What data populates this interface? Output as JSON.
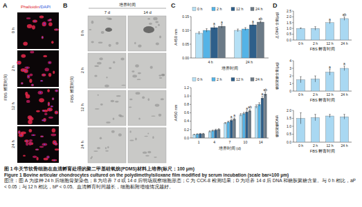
{
  "panels": [
    {
      "label": "A",
      "header": [
        "Phalloidin",
        "/DAPI"
      ],
      "side_label": "FBS 孵育时间",
      "row_labels": [
        "0 h",
        "2 h",
        "12 h",
        "24 h"
      ]
    },
    {
      "label": "B",
      "header": "培养时间",
      "column_labels": [
        "7 d",
        "14 d"
      ],
      "side_label": "FBS 孵育时间",
      "row_labels": [
        "0 h",
        "2 h",
        "12 h",
        "24 h"
      ]
    },
    {
      "label": "C"
    },
    {
      "label": "D"
    }
  ],
  "chart_data": [
    {
      "type": "bar",
      "ylabel": "A450 nm",
      "xlabel": "培养时间",
      "categories": [
        "4 h",
        "24 h"
      ],
      "series": [
        {
          "name": "0 h",
          "color": "#b5e0f5",
          "values": [
            0.09,
            0.1
          ],
          "errors": [
            0.005,
            0.005
          ],
          "sig_labels": [
            null,
            null
          ]
        },
        {
          "name": "2 h",
          "color": "#54b3e6",
          "values": [
            0.1,
            0.105
          ],
          "errors": [
            0.006,
            0.005
          ],
          "sig_labels": [
            null,
            null
          ]
        },
        {
          "name": "12 h",
          "color": "#2e5f8a",
          "values": [
            0.11,
            0.12
          ],
          "errors": [
            0.006,
            0.005
          ],
          "sig_labels": [
            "a",
            "a"
          ]
        },
        {
          "name": "24 h",
          "color": "#6b7a87",
          "values": [
            0.115,
            0.13
          ],
          "errors": [
            0.007,
            0.004
          ],
          "sig_labels": [
            "a",
            "ab"
          ]
        }
      ],
      "ylim": [
        0,
        0.15
      ],
      "yticks": [
        {
          "value": 0,
          "label": "0.00"
        },
        {
          "value": 0.05,
          "label": "0.05"
        },
        {
          "value": 0.1,
          "label": "0.10"
        },
        {
          "value": 0.15,
          "label": "0.15"
        }
      ],
      "legend": "top"
    },
    {
      "type": "bar",
      "ylabel": "A450 nm",
      "xlabel": "培养时间 (d)",
      "categories": [
        "1",
        "4",
        "7",
        "10",
        "14"
      ],
      "series": [
        {
          "name": "0 h",
          "color": "#b5e0f5",
          "values": [
            0.08,
            0.15,
            0.35,
            0.55,
            0.75
          ],
          "errors": [
            0.01,
            0.02,
            0.02,
            0.03,
            0.04
          ],
          "sig_labels": [
            null,
            null,
            null,
            null,
            null
          ]
        },
        {
          "name": "2 h",
          "color": "#54b3e6",
          "values": [
            0.09,
            0.17,
            0.38,
            0.58,
            0.8
          ],
          "errors": [
            0.01,
            0.02,
            0.02,
            0.03,
            0.04
          ],
          "sig_labels": [
            null,
            null,
            null,
            null,
            null
          ]
        },
        {
          "name": "12 h",
          "color": "#2e5f8a",
          "values": [
            0.1,
            0.19,
            0.42,
            0.62,
            0.95
          ],
          "errors": [
            0.01,
            0.02,
            0.03,
            0.03,
            0.04
          ],
          "sig_labels": [
            null,
            null,
            "a",
            "a",
            "a"
          ]
        },
        {
          "name": "24 h",
          "color": "#6b7a87",
          "values": [
            0.1,
            0.2,
            0.45,
            0.65,
            1.05
          ],
          "errors": [
            0.01,
            0.02,
            0.03,
            0.03,
            0.05
          ],
          "sig_labels": [
            null,
            null,
            "a",
            "ab",
            "ab"
          ]
        }
      ],
      "ylim": [
        0,
        1.2
      ],
      "yticks": [
        {
          "value": 0,
          "label": "0.0"
        },
        {
          "value": 0.2,
          "label": "0.2"
        },
        {
          "value": 0.4,
          "label": "0.4"
        },
        {
          "value": 0.6,
          "label": "0.6"
        },
        {
          "value": 0.8,
          "label": "0.8"
        },
        {
          "value": 1,
          "label": "1.0"
        },
        {
          "value": 1.2,
          "label": "1.2"
        }
      ],
      "legend": "top"
    },
    {
      "type": "bar",
      "ylabel": "总 DNA 含量(μg)",
      "xlabel": "FBS 孵育时间",
      "categories": [
        "0 h",
        "2 h",
        "12 h",
        "24 h"
      ],
      "values": [
        1.0,
        1.0,
        1.5,
        1.85
      ],
      "errors": [
        0.05,
        0.15,
        0.1,
        0.15
      ],
      "sig_labels": [
        null,
        null,
        "a",
        "ab"
      ],
      "color": "#a9d8f2",
      "ylim": [
        0,
        2.5
      ],
      "yticks": [
        {
          "value": 0,
          "label": "0.0"
        },
        {
          "value": 0.5,
          "label": "0.5"
        },
        {
          "value": 1,
          "label": "1.0"
        },
        {
          "value": 1.5,
          "label": "1.5"
        },
        {
          "value": 2,
          "label": "2.0"
        },
        {
          "value": 2.5,
          "label": "2.5"
        }
      ]
    },
    {
      "type": "bar",
      "ylabel": "糖胺聚糖含量(μg)",
      "xlabel": "FBS 孵育时间",
      "categories": [
        "0 h",
        "2 h",
        "12 h",
        "24 h"
      ],
      "values": [
        1.5,
        1.6,
        2.5,
        3.0
      ],
      "errors": [
        0.4,
        0.4,
        0.4,
        0.3
      ],
      "sig_labels": [
        null,
        null,
        "a",
        "a"
      ],
      "color": "#a9d8f2",
      "ylim": [
        0,
        4
      ],
      "yticks": [
        0,
        1,
        2,
        3,
        4
      ]
    },
    {
      "type": "bar",
      "ylabel": "糖胺聚糖/DNA",
      "xlabel": "FBS 孵育时间",
      "categories": [
        "0 h",
        "2 h",
        "12 h",
        "24 h"
      ],
      "values": [
        1.5,
        1.55,
        1.65,
        1.6
      ],
      "errors": [
        0.35,
        0.2,
        0.1,
        0.15
      ],
      "color": "#a9d8f2",
      "ylim": [
        0,
        2
      ],
      "yticks": [
        {
          "value": 0,
          "label": "0.0"
        },
        {
          "value": 0.5,
          "label": "0.5"
        },
        {
          "value": 1,
          "label": "1.0"
        },
        {
          "value": 1.5,
          "label": "1.5"
        },
        {
          "value": 2,
          "label": "2.0"
        }
      ]
    }
  ],
  "caption": {
    "title_cn": "图 1  牛关节软骨细胞在血清孵育处理的聚二甲基硅氧烷(PDMS)材料上培养(标尺：100 μm)",
    "title_en": "Figure 1  Bovine articular chondrocytes cultured on the polydimethylsiloxane film modified by serum incubation (scale bar=100 μm)",
    "note": "图注：图 A 为接种 24 h 后细胞骨架染色；B 为培养 7 d 或 14 d 后明场观察细胞形态；C 为 CCK-8 检测结果；D 为培养 14 d 后 DNA 和糖胺聚糖含量。与 0 h 相比，aP < 0.05；与 12 h 相比，bP < 0.05。血清孵育时间越长，细胞黏附增殖情况越好。"
  }
}
